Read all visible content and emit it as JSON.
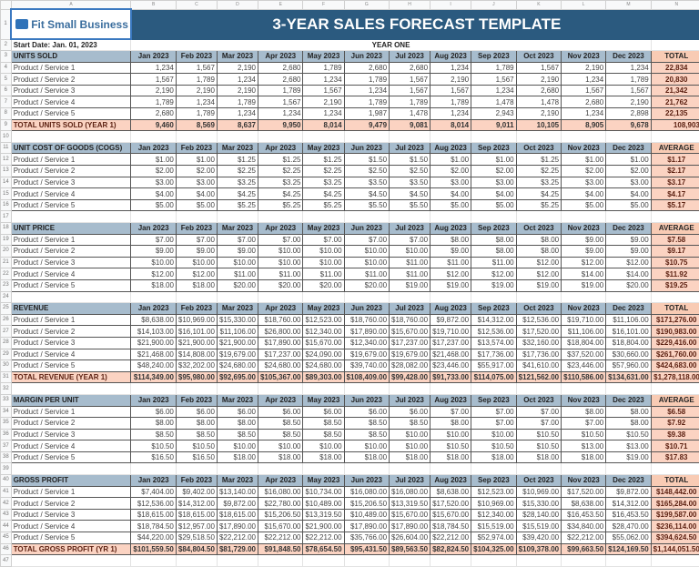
{
  "columns": [
    "",
    "A",
    "B",
    "C",
    "D",
    "E",
    "F",
    "G",
    "H",
    "I",
    "J",
    "K",
    "L",
    "M",
    "N",
    ""
  ],
  "logo": "Fit Small Business",
  "title": "3-YEAR SALES FORECAST TEMPLATE",
  "start_date": "Start Date: Jan. 01, 2023",
  "year_label": "YEAR ONE",
  "months": [
    "Jan 2023",
    "Feb 2023",
    "Mar 2023",
    "Apr 2023",
    "May 2023",
    "Jun 2023",
    "Jul 2023",
    "Aug 2023",
    "Sep 2023",
    "Oct 2023",
    "Nov 2023",
    "Dec 2023"
  ],
  "colors": {
    "title_bg": "#2b5a7f",
    "header_bg": "#a7bccd",
    "total_bg": "#fbd3c2"
  },
  "sections": [
    {
      "title": "UNITS SOLD",
      "last": "TOTAL",
      "rows": [
        {
          "label": "Product / Service 1",
          "values": [
            "1,234",
            "1,567",
            "2,190",
            "2,680",
            "1,789",
            "2,680",
            "2,680",
            "1,234",
            "1,789",
            "1,567",
            "2,190",
            "1,234"
          ],
          "total": "22,834"
        },
        {
          "label": "Product / Service 2",
          "values": [
            "1,567",
            "1,789",
            "1,234",
            "2,680",
            "1,234",
            "1,789",
            "1,567",
            "2,190",
            "1,567",
            "2,190",
            "1,234",
            "1,789"
          ],
          "total": "20,830"
        },
        {
          "label": "Product / Service 3",
          "values": [
            "2,190",
            "2,190",
            "2,190",
            "1,789",
            "1,567",
            "1,234",
            "1,567",
            "1,567",
            "1,234",
            "2,680",
            "1,567",
            "1,567"
          ],
          "total": "21,342"
        },
        {
          "label": "Product / Service 4",
          "values": [
            "1,789",
            "1,234",
            "1,789",
            "1,567",
            "2,190",
            "1,789",
            "1,789",
            "1,789",
            "1,478",
            "1,478",
            "2,680",
            "2,190"
          ],
          "total": "21,762"
        },
        {
          "label": "Product / Service 5",
          "values": [
            "2,680",
            "1,789",
            "1,234",
            "1,234",
            "1,234",
            "1,987",
            "1,478",
            "1,234",
            "2,943",
            "2,190",
            "1,234",
            "2,898"
          ],
          "total": "22,135"
        }
      ],
      "total_row": {
        "label": "TOTAL UNITS SOLD (YEAR 1)",
        "values": [
          "9,460",
          "8,569",
          "8,637",
          "9,950",
          "8,014",
          "9,479",
          "9,081",
          "8,014",
          "9,011",
          "10,105",
          "8,905",
          "9,678"
        ],
        "total": "108,903"
      }
    },
    {
      "title": "UNIT COST OF GOODS (COGS)",
      "last": "AVERAGE",
      "rows": [
        {
          "label": "Product / Service 1",
          "values": [
            "$1.00",
            "$1.00",
            "$1.25",
            "$1.25",
            "$1.25",
            "$1.50",
            "$1.50",
            "$1.00",
            "$1.00",
            "$1.25",
            "$1.00",
            "$1.00"
          ],
          "total": "$1.17"
        },
        {
          "label": "Product / Service 2",
          "values": [
            "$2.00",
            "$2.00",
            "$2.25",
            "$2.25",
            "$2.25",
            "$2.50",
            "$2.50",
            "$2.00",
            "$2.00",
            "$2.25",
            "$2.00",
            "$2.00"
          ],
          "total": "$2.17"
        },
        {
          "label": "Product / Service 3",
          "values": [
            "$3.00",
            "$3.00",
            "$3.25",
            "$3.25",
            "$3.25",
            "$3.50",
            "$3.50",
            "$3.00",
            "$3.00",
            "$3.25",
            "$3.00",
            "$3.00"
          ],
          "total": "$3.17"
        },
        {
          "label": "Product / Service 4",
          "values": [
            "$4.00",
            "$4.00",
            "$4.25",
            "$4.25",
            "$4.25",
            "$4.50",
            "$4.50",
            "$4.00",
            "$4.00",
            "$4.25",
            "$4.00",
            "$4.00"
          ],
          "total": "$4.17"
        },
        {
          "label": "Product / Service 5",
          "values": [
            "$5.00",
            "$5.00",
            "$5.25",
            "$5.25",
            "$5.25",
            "$5.50",
            "$5.50",
            "$5.00",
            "$5.00",
            "$5.25",
            "$5.00",
            "$5.00"
          ],
          "total": "$5.17"
        }
      ]
    },
    {
      "title": "UNIT PRICE",
      "last": "AVERAGE",
      "rows": [
        {
          "label": "Product / Service 1",
          "values": [
            "$7.00",
            "$7.00",
            "$7.00",
            "$7.00",
            "$7.00",
            "$7.00",
            "$7.00",
            "$8.00",
            "$8.00",
            "$8.00",
            "$9.00",
            "$9.00"
          ],
          "total": "$7.58"
        },
        {
          "label": "Product / Service 2",
          "values": [
            "$9.00",
            "$9.00",
            "$9.00",
            "$10.00",
            "$10.00",
            "$10.00",
            "$10.00",
            "$9.00",
            "$8.00",
            "$8.00",
            "$9.00",
            "$9.00"
          ],
          "total": "$9.17"
        },
        {
          "label": "Product / Service 3",
          "values": [
            "$10.00",
            "$10.00",
            "$10.00",
            "$10.00",
            "$10.00",
            "$10.00",
            "$11.00",
            "$11.00",
            "$11.00",
            "$12.00",
            "$12.00",
            "$12.00"
          ],
          "total": "$10.75"
        },
        {
          "label": "Product / Service 4",
          "values": [
            "$12.00",
            "$12.00",
            "$11.00",
            "$11.00",
            "$11.00",
            "$11.00",
            "$11.00",
            "$12.00",
            "$12.00",
            "$12.00",
            "$14.00",
            "$14.00"
          ],
          "total": "$11.92"
        },
        {
          "label": "Product / Service 5",
          "values": [
            "$18.00",
            "$18.00",
            "$20.00",
            "$20.00",
            "$20.00",
            "$20.00",
            "$19.00",
            "$19.00",
            "$19.00",
            "$19.00",
            "$19.00",
            "$20.00"
          ],
          "total": "$19.25"
        }
      ]
    },
    {
      "title": "REVENUE",
      "last": "TOTAL",
      "rows": [
        {
          "label": "Product / Service 1",
          "values": [
            "$8,638.00",
            "$10,969.00",
            "$15,330.00",
            "$18,760.00",
            "$12,523.00",
            "$18,760.00",
            "$18,760.00",
            "$9,872.00",
            "$14,312.00",
            "$12,536.00",
            "$19,710.00",
            "$11,106.00"
          ],
          "total": "$171,276.00"
        },
        {
          "label": "Product / Service 2",
          "values": [
            "$14,103.00",
            "$16,101.00",
            "$11,106.00",
            "$26,800.00",
            "$12,340.00",
            "$17,890.00",
            "$15,670.00",
            "$19,710.00",
            "$12,536.00",
            "$17,520.00",
            "$11,106.00",
            "$16,101.00"
          ],
          "total": "$190,983.00"
        },
        {
          "label": "Product / Service 3",
          "values": [
            "$21,900.00",
            "$21,900.00",
            "$21,900.00",
            "$17,890.00",
            "$15,670.00",
            "$12,340.00",
            "$17,237.00",
            "$17,237.00",
            "$13,574.00",
            "$32,160.00",
            "$18,804.00",
            "$18,804.00"
          ],
          "total": "$229,416.00"
        },
        {
          "label": "Product / Service 4",
          "values": [
            "$21,468.00",
            "$14,808.00",
            "$19,679.00",
            "$17,237.00",
            "$24,090.00",
            "$19,679.00",
            "$19,679.00",
            "$21,468.00",
            "$17,736.00",
            "$17,736.00",
            "$37,520.00",
            "$30,660.00"
          ],
          "total": "$261,760.00"
        },
        {
          "label": "Product / Service 5",
          "values": [
            "$48,240.00",
            "$32,202.00",
            "$24,680.00",
            "$24,680.00",
            "$24,680.00",
            "$39,740.00",
            "$28,082.00",
            "$23,446.00",
            "$55,917.00",
            "$41,610.00",
            "$23,446.00",
            "$57,960.00"
          ],
          "total": "$424,683.00"
        }
      ],
      "total_row": {
        "label": "TOTAL REVENUE (YEAR 1)",
        "values": [
          "$114,349.00",
          "$95,980.00",
          "$92,695.00",
          "$105,367.00",
          "$89,303.00",
          "$108,409.00",
          "$99,428.00",
          "$91,733.00",
          "$114,075.00",
          "$121,562.00",
          "$110,586.00",
          "$134,631.00"
        ],
        "total": "$1,278,118.00"
      }
    },
    {
      "title": "MARGIN PER UNIT",
      "last": "AVERAGE",
      "rows": [
        {
          "label": "Product / Service 1",
          "values": [
            "$6.00",
            "$6.00",
            "$6.00",
            "$6.00",
            "$6.00",
            "$6.00",
            "$6.00",
            "$7.00",
            "$7.00",
            "$7.00",
            "$8.00",
            "$8.00"
          ],
          "total": "$6.58"
        },
        {
          "label": "Product / Service 2",
          "values": [
            "$8.00",
            "$8.00",
            "$8.00",
            "$8.50",
            "$8.50",
            "$8.50",
            "$8.50",
            "$8.00",
            "$7.00",
            "$7.00",
            "$7.00",
            "$8.00"
          ],
          "total": "$7.92"
        },
        {
          "label": "Product / Service 3",
          "values": [
            "$8.50",
            "$8.50",
            "$8.50",
            "$8.50",
            "$8.50",
            "$8.50",
            "$10.00",
            "$10.00",
            "$10.00",
            "$10.50",
            "$10.50",
            "$10.50"
          ],
          "total": "$9.38"
        },
        {
          "label": "Product / Service 4",
          "values": [
            "$10.50",
            "$10.50",
            "$10.00",
            "$10.00",
            "$10.00",
            "$10.00",
            "$10.00",
            "$10.50",
            "$10.50",
            "$10.50",
            "$13.00",
            "$13.00"
          ],
          "total": "$10.71"
        },
        {
          "label": "Product / Service 5",
          "values": [
            "$16.50",
            "$16.50",
            "$18.00",
            "$18.00",
            "$18.00",
            "$18.00",
            "$18.00",
            "$18.00",
            "$18.00",
            "$18.00",
            "$18.00",
            "$19.00"
          ],
          "total": "$17.83"
        }
      ]
    },
    {
      "title": "GROSS PROFIT",
      "last": "TOTAL",
      "rows": [
        {
          "label": "Product / Service 1",
          "values": [
            "$7,404.00",
            "$9,402.00",
            "$13,140.00",
            "$16,080.00",
            "$10,734.00",
            "$16,080.00",
            "$16,080.00",
            "$8,638.00",
            "$12,523.00",
            "$10,969.00",
            "$17,520.00",
            "$9,872.00"
          ],
          "total": "$148,442.00"
        },
        {
          "label": "Product / Service 2",
          "values": [
            "$12,536.00",
            "$14,312.00",
            "$9,872.00",
            "$22,780.00",
            "$10,489.00",
            "$15,206.50",
            "$13,319.50",
            "$17,520.00",
            "$10,969.00",
            "$15,330.00",
            "$8,638.00",
            "$14,312.00"
          ],
          "total": "$165,284.00"
        },
        {
          "label": "Product / Service 3",
          "values": [
            "$18,615.00",
            "$18,615.00",
            "$18,615.00",
            "$15,206.50",
            "$13,319.50",
            "$10,489.00",
            "$15,670.00",
            "$15,670.00",
            "$12,340.00",
            "$28,140.00",
            "$16,453.50",
            "$16,453.50"
          ],
          "total": "$199,587.00"
        },
        {
          "label": "Product / Service 4",
          "values": [
            "$18,784.50",
            "$12,957.00",
            "$17,890.00",
            "$15,670.00",
            "$21,900.00",
            "$17,890.00",
            "$17,890.00",
            "$18,784.50",
            "$15,519.00",
            "$15,519.00",
            "$34,840.00",
            "$28,470.00"
          ],
          "total": "$236,114.00"
        },
        {
          "label": "Product / Service 5",
          "values": [
            "$44,220.00",
            "$29,518.50",
            "$22,212.00",
            "$22,212.00",
            "$22,212.00",
            "$35,766.00",
            "$26,604.00",
            "$22,212.00",
            "$52,974.00",
            "$39,420.00",
            "$22,212.00",
            "$55,062.00"
          ],
          "total": "$394,624.50"
        }
      ],
      "total_row": {
        "label": "TOTAL GROSS PROFIT (YR 1)",
        "values": [
          "$101,559.50",
          "$84,804.50",
          "$81,729.00",
          "$91,848.50",
          "$78,654.50",
          "$95,431.50",
          "$89,563.50",
          "$82,824.50",
          "$104,325.00",
          "$109,378.00",
          "$99,663.50",
          "$124,169.50"
        ],
        "total": "$1,144,051.50"
      }
    }
  ]
}
